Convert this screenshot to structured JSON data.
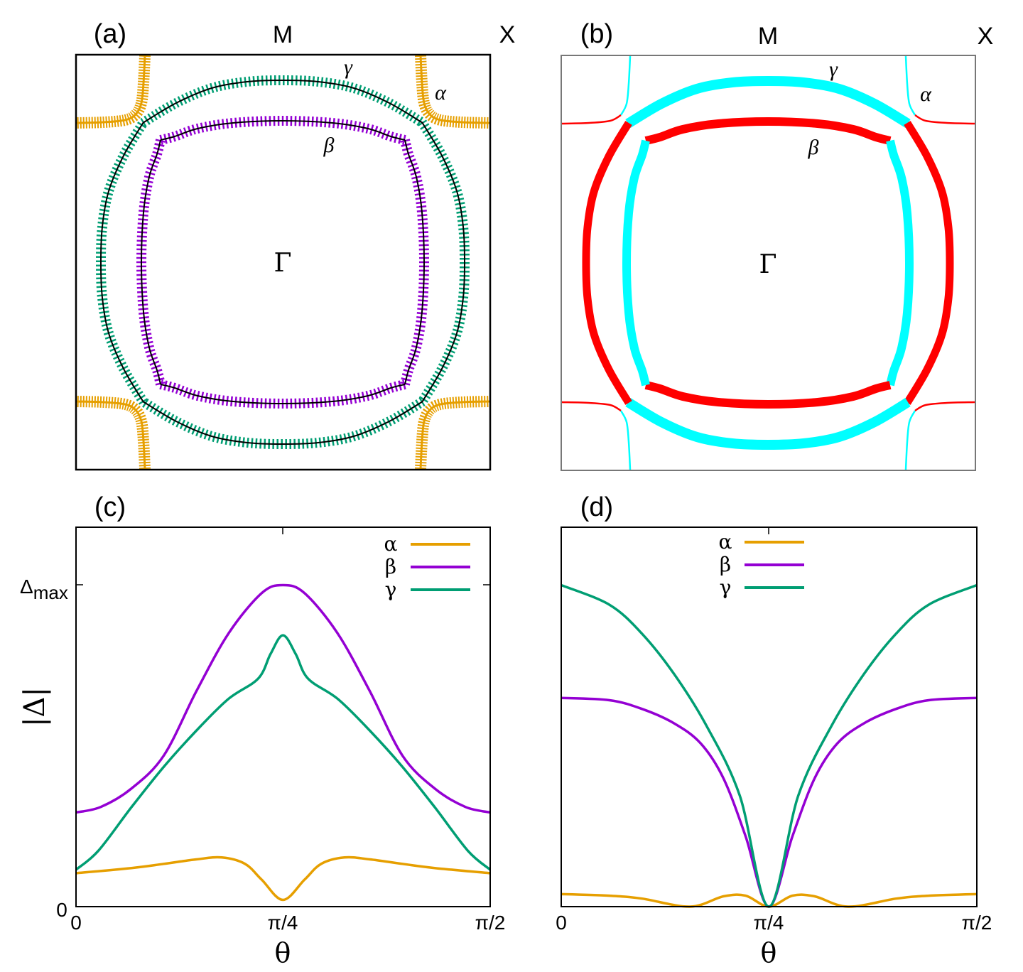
{
  "panels": {
    "a": {
      "label": "(a)",
      "top_center": "M",
      "top_right": "X",
      "center": "Γ",
      "bands": {
        "alpha": "α",
        "beta": "β",
        "gamma": "γ"
      }
    },
    "b": {
      "label": "(b)",
      "top_center": "M",
      "top_right": "X",
      "center": "Γ",
      "bands": {
        "alpha": "α",
        "beta": "β",
        "gamma": "γ"
      }
    }
  },
  "colors": {
    "alpha": "#e69f00",
    "beta": "#9400d3",
    "gamma": "#009e73",
    "red": "#ff0000",
    "cyan": "#00ffff"
  },
  "chart_data": [
    {
      "type": "line",
      "panel_label": "(c)",
      "xlabel": "θ",
      "ylabel": "|Δ|",
      "xticks": [
        "0",
        "π/4",
        "π/2"
      ],
      "yticks": {
        "zero": "0",
        "max_symbol": "Δ",
        "max_sub": "max"
      },
      "xlim": [
        0,
        1.571
      ],
      "ylim": [
        0,
        1.18
      ],
      "legend": "top-right",
      "series": [
        {
          "name": "α",
          "color": "#e69f00",
          "x": [
            0,
            0.21,
            0.333,
            0.456,
            0.553,
            0.641,
            0.704,
            0.785,
            0.867,
            0.93,
            1.018,
            1.115,
            1.238,
            1.361,
            1.571
          ],
          "y": [
            0.104,
            0.12,
            0.133,
            0.147,
            0.153,
            0.133,
            0.084,
            0.021,
            0.084,
            0.133,
            0.153,
            0.147,
            0.133,
            0.12,
            0.104
          ]
        },
        {
          "name": "β",
          "color": "#9400d3",
          "x": [
            0,
            0.094,
            0.21,
            0.333,
            0.456,
            0.578,
            0.704,
            0.785,
            0.867,
            0.993,
            1.115,
            1.238,
            1.361,
            1.477,
            1.571
          ],
          "y": [
            0.293,
            0.31,
            0.367,
            0.47,
            0.669,
            0.849,
            0.975,
            1.0,
            0.975,
            0.849,
            0.669,
            0.47,
            0.367,
            0.31,
            0.293
          ]
        },
        {
          "name": "γ",
          "color": "#009e73",
          "x": [
            0,
            0.085,
            0.21,
            0.333,
            0.456,
            0.578,
            0.691,
            0.738,
            0.785,
            0.833,
            0.88,
            0.993,
            1.115,
            1.238,
            1.361,
            1.486,
            1.571
          ],
          "y": [
            0.115,
            0.174,
            0.309,
            0.435,
            0.547,
            0.646,
            0.709,
            0.786,
            0.844,
            0.786,
            0.709,
            0.646,
            0.547,
            0.435,
            0.309,
            0.174,
            0.115
          ]
        }
      ]
    },
    {
      "type": "line",
      "panel_label": "(d)",
      "xlabel": "θ",
      "xticks": [
        "0",
        "π/4",
        "π/2"
      ],
      "xlim": [
        0,
        1.571
      ],
      "ylim": [
        0,
        1.18
      ],
      "legend": "top-center",
      "series": [
        {
          "name": "α",
          "color": "#e69f00",
          "x": [
            0,
            0.182,
            0.305,
            0.487,
            0.613,
            0.697,
            0.785,
            0.874,
            0.958,
            1.084,
            1.266,
            1.389,
            1.571
          ],
          "y": [
            0.039,
            0.034,
            0.025,
            0,
            0.032,
            0.034,
            0,
            0.034,
            0.032,
            0,
            0.025,
            0.034,
            0.039
          ]
        },
        {
          "name": "β",
          "color": "#9400d3",
          "x": [
            0,
            0.182,
            0.305,
            0.427,
            0.528,
            0.613,
            0.697,
            0.785,
            0.874,
            0.958,
            1.043,
            1.144,
            1.266,
            1.389,
            1.571
          ],
          "y": [
            0.649,
            0.642,
            0.615,
            0.57,
            0.507,
            0.399,
            0.219,
            0,
            0.219,
            0.399,
            0.507,
            0.57,
            0.615,
            0.642,
            0.649
          ]
        },
        {
          "name": "γ",
          "color": "#009e73",
          "x": [
            0,
            0.182,
            0.305,
            0.427,
            0.55,
            0.675,
            0.785,
            0.896,
            1.021,
            1.144,
            1.266,
            1.389,
            1.571
          ],
          "y": [
            1.0,
            0.939,
            0.849,
            0.723,
            0.561,
            0.345,
            0,
            0.345,
            0.561,
            0.723,
            0.849,
            0.939,
            1.0
          ]
        }
      ]
    }
  ]
}
